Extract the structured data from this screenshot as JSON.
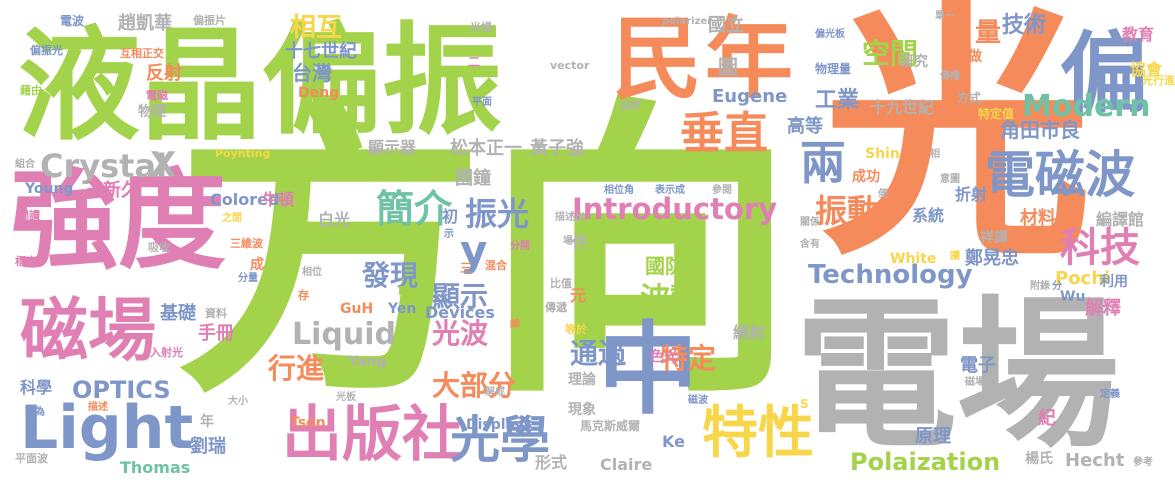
{
  "palette": {
    "green": "#a2d34b",
    "orange": "#f58a5b",
    "blue": "#7f97c8",
    "pink": "#e07fb3",
    "gray": "#b2b2b2",
    "teal": "#6fc2a6",
    "yellow": "#f7d64a"
  },
  "words": [
    {
      "text": "方向",
      "color": "green"
    },
    {
      "text": "光",
      "color": "orange"
    },
    {
      "text": "電場",
      "color": "gray"
    },
    {
      "text": "液晶",
      "color": "green"
    },
    {
      "text": "偏振",
      "color": "green"
    },
    {
      "text": "強度",
      "color": "pink"
    },
    {
      "text": "民",
      "color": "orange"
    },
    {
      "text": "年",
      "color": "orange"
    },
    {
      "text": "偏",
      "color": "blue"
    },
    {
      "text": "電磁波",
      "color": "blue"
    },
    {
      "text": "磁場",
      "color": "pink"
    },
    {
      "text": "中",
      "color": "blue"
    },
    {
      "text": "出版社",
      "color": "pink"
    },
    {
      "text": "光學",
      "color": "blue"
    },
    {
      "text": "特性",
      "color": "yellow"
    },
    {
      "text": "Light",
      "color": "blue"
    },
    {
      "text": "垂直",
      "color": "orange"
    },
    {
      "text": "兩",
      "color": "blue"
    },
    {
      "text": "科技",
      "color": "pink"
    },
    {
      "text": "Modern",
      "color": "teal"
    },
    {
      "text": "Introductory",
      "color": "pink"
    },
    {
      "text": "簡介",
      "color": "teal"
    },
    {
      "text": "Crystal",
      "color": "gray"
    },
    {
      "text": "X",
      "color": "gray"
    },
    {
      "text": "y",
      "color": "blue"
    },
    {
      "text": "振光",
      "color": "blue"
    },
    {
      "text": "振動",
      "color": "orange"
    },
    {
      "text": "Technology",
      "color": "blue"
    },
    {
      "text": "OPTICS",
      "color": "blue"
    },
    {
      "text": "Polaization",
      "color": "green"
    },
    {
      "text": "發現",
      "color": "blue"
    },
    {
      "text": "顯示",
      "color": "blue"
    },
    {
      "text": "光波",
      "color": "pink"
    },
    {
      "text": "大部分",
      "color": "orange"
    },
    {
      "text": "通過",
      "color": "blue"
    },
    {
      "text": "特定",
      "color": "orange"
    },
    {
      "text": "行進",
      "color": "orange"
    },
    {
      "text": "Liquid",
      "color": "gray"
    },
    {
      "text": "波動",
      "color": "green"
    },
    {
      "text": "國防",
      "color": "green"
    },
    {
      "text": "空間",
      "color": "green"
    },
    {
      "text": "量",
      "color": "orange"
    },
    {
      "text": "技術",
      "color": "blue"
    },
    {
      "text": "相互",
      "color": "yellow"
    },
    {
      "text": "十七世紀",
      "color": "blue"
    },
    {
      "text": "台灣",
      "color": "blue"
    },
    {
      "text": "趙凱華",
      "color": "gray"
    },
    {
      "text": "工業",
      "color": "blue"
    },
    {
      "text": "十九世紀",
      "color": "gray"
    },
    {
      "text": "角田市良",
      "color": "blue"
    },
    {
      "text": "高等",
      "color": "blue"
    },
    {
      "text": "教育",
      "color": "pink"
    },
    {
      "text": "協會",
      "color": "yellow"
    },
    {
      "text": "國立",
      "color": "gray"
    },
    {
      "text": "圖",
      "color": "gray"
    },
    {
      "text": "Eugene",
      "color": "blue"
    },
    {
      "text": "顯示器",
      "color": "gray"
    },
    {
      "text": "松本正一",
      "color": "gray"
    },
    {
      "text": "黃子強",
      "color": "gray"
    },
    {
      "text": "王新久",
      "color": "pink"
    },
    {
      "text": "Colored",
      "color": "blue"
    },
    {
      "text": "牛頓",
      "color": "pink"
    },
    {
      "text": "白光",
      "color": "gray"
    },
    {
      "text": "基礎",
      "color": "blue"
    },
    {
      "text": "手冊",
      "color": "pink"
    },
    {
      "text": "科學",
      "color": "blue"
    },
    {
      "text": "劉瑞",
      "color": "blue"
    },
    {
      "text": "Thomas",
      "color": "teal"
    },
    {
      "text": "Young",
      "color": "blue"
    },
    {
      "text": "國鐘",
      "color": "gray"
    },
    {
      "text": "初",
      "color": "blue"
    },
    {
      "text": "件",
      "color": "gray"
    },
    {
      "text": "元",
      "color": "orange"
    },
    {
      "text": "Devices",
      "color": "blue"
    },
    {
      "text": "Displays",
      "color": "blue"
    },
    {
      "text": "GuH",
      "color": "orange"
    },
    {
      "text": "Yen",
      "color": "blue"
    },
    {
      "text": "Tson",
      "color": "orange"
    },
    {
      "text": "Yang",
      "color": "gray"
    },
    {
      "text": "Claire",
      "color": "gray"
    },
    {
      "text": "Ke",
      "color": "blue"
    },
    {
      "text": "形式",
      "color": "gray"
    },
    {
      "text": "理論",
      "color": "gray"
    },
    {
      "text": "現象",
      "color": "gray"
    },
    {
      "text": "色光",
      "color": "pink"
    },
    {
      "text": "繞射",
      "color": "gray"
    },
    {
      "text": "馬克斯威爾",
      "color": "gray"
    },
    {
      "text": "原理",
      "color": "blue"
    },
    {
      "text": "電子",
      "color": "blue"
    },
    {
      "text": "Hecht",
      "color": "gray"
    },
    {
      "text": "楊氏",
      "color": "gray"
    },
    {
      "text": "紀",
      "color": "pink"
    },
    {
      "text": "鄭晃忠",
      "color": "blue"
    },
    {
      "text": "Pochi",
      "color": "yellow"
    },
    {
      "text": "Wu",
      "color": "blue"
    },
    {
      "text": "利用",
      "color": "blue"
    },
    {
      "text": "解釋",
      "color": "pink"
    },
    {
      "text": "White",
      "color": "yellow"
    },
    {
      "text": "材料",
      "color": "orange"
    },
    {
      "text": "祥譯",
      "color": "gray"
    },
    {
      "text": "編譯館",
      "color": "gray"
    },
    {
      "text": "系統",
      "color": "blue"
    },
    {
      "text": "折射",
      "color": "blue"
    },
    {
      "text": "成功",
      "color": "orange"
    },
    {
      "text": "Shin",
      "color": "yellow"
    },
    {
      "text": "Deng",
      "color": "orange"
    },
    {
      "text": "研究",
      "color": "gray"
    },
    {
      "text": "物理量",
      "color": "blue"
    },
    {
      "text": "做",
      "color": "orange"
    },
    {
      "text": "方式",
      "color": "gray"
    },
    {
      "text": "特定值",
      "color": "yellow"
    },
    {
      "text": "光行進",
      "color": "yellow"
    },
    {
      "text": "反射",
      "color": "orange"
    },
    {
      "text": "物理",
      "color": "gray"
    },
    {
      "text": "電磁",
      "color": "pink"
    },
    {
      "text": "資料",
      "color": "gray"
    },
    {
      "text": "互相正交",
      "color": "orange"
    },
    {
      "text": "偏振片",
      "color": "gray"
    },
    {
      "text": "電波",
      "color": "blue"
    },
    {
      "text": "偏振光",
      "color": "blue"
    },
    {
      "text": "藉由",
      "color": "green"
    },
    {
      "text": "組合",
      "color": "gray"
    },
    {
      "text": "開讀",
      "color": "pink"
    },
    {
      "text": "標出",
      "color": "pink"
    },
    {
      "text": "吸收",
      "color": "gray"
    },
    {
      "text": "之間",
      "color": "yellow"
    },
    {
      "text": "三維波",
      "color": "orange"
    },
    {
      "text": "分量",
      "color": "blue"
    },
    {
      "text": "成",
      "color": "orange"
    },
    {
      "text": "入射光",
      "color": "pink"
    },
    {
      "text": "稱為",
      "color": "blue"
    },
    {
      "text": "平面波",
      "color": "gray"
    },
    {
      "text": "大小",
      "color": "gray"
    },
    {
      "text": "光板",
      "color": "gray"
    },
    {
      "text": "描述",
      "color": "orange"
    },
    {
      "text": "相位",
      "color": "gray"
    },
    {
      "text": "Poynting",
      "color": "yellow"
    },
    {
      "text": "vector",
      "color": "gray"
    },
    {
      "text": "polarizer",
      "color": "gray"
    },
    {
      "text": "光場",
      "color": "gray"
    },
    {
      "text": "平面",
      "color": "blue"
    },
    {
      "text": "自然",
      "color": "gray"
    },
    {
      "text": "相位角",
      "color": "blue"
    },
    {
      "text": "表示成",
      "color": "blue"
    },
    {
      "text": "參閱",
      "color": "gray"
    },
    {
      "text": "比值",
      "color": "gray"
    },
    {
      "text": "傳遞",
      "color": "gray"
    },
    {
      "text": "等於",
      "color": "yellow"
    },
    {
      "text": "分開",
      "color": "pink"
    },
    {
      "text": "混合",
      "color": "orange"
    },
    {
      "text": "描述出",
      "color": "gray"
    },
    {
      "text": "場",
      "color": "gray"
    },
    {
      "text": "解成",
      "color": "gray"
    },
    {
      "text": "線",
      "color": "orange"
    },
    {
      "text": "磁波",
      "color": "blue"
    },
    {
      "text": "磁場值",
      "color": "gray"
    },
    {
      "text": "定義",
      "color": "blue"
    },
    {
      "text": "參考",
      "color": "gray"
    },
    {
      "text": "單一",
      "color": "gray"
    },
    {
      "text": "偏光板",
      "color": "blue"
    },
    {
      "text": "傳播",
      "color": "gray"
    },
    {
      "text": "相",
      "color": "gray"
    },
    {
      "text": "意圖",
      "color": "gray"
    },
    {
      "text": "關係",
      "color": "gray"
    },
    {
      "text": "含有",
      "color": "gray"
    },
    {
      "text": "附錄",
      "color": "gray"
    },
    {
      "text": "振態",
      "color": "gray"
    },
    {
      "text": "分",
      "color": "blue"
    },
    {
      "text": "讀",
      "color": "yellow"
    },
    {
      "text": "三",
      "color": "orange"
    },
    {
      "text": "二",
      "color": "pink"
    },
    {
      "text": "存",
      "color": "orange"
    },
    {
      "text": "E",
      "color": "green"
    },
    {
      "text": "S",
      "color": "yellow"
    },
    {
      "text": "示",
      "color": "blue"
    },
    {
      "text": "便",
      "color": "gray"
    },
    {
      "text": "年",
      "color": "gray"
    }
  ]
}
